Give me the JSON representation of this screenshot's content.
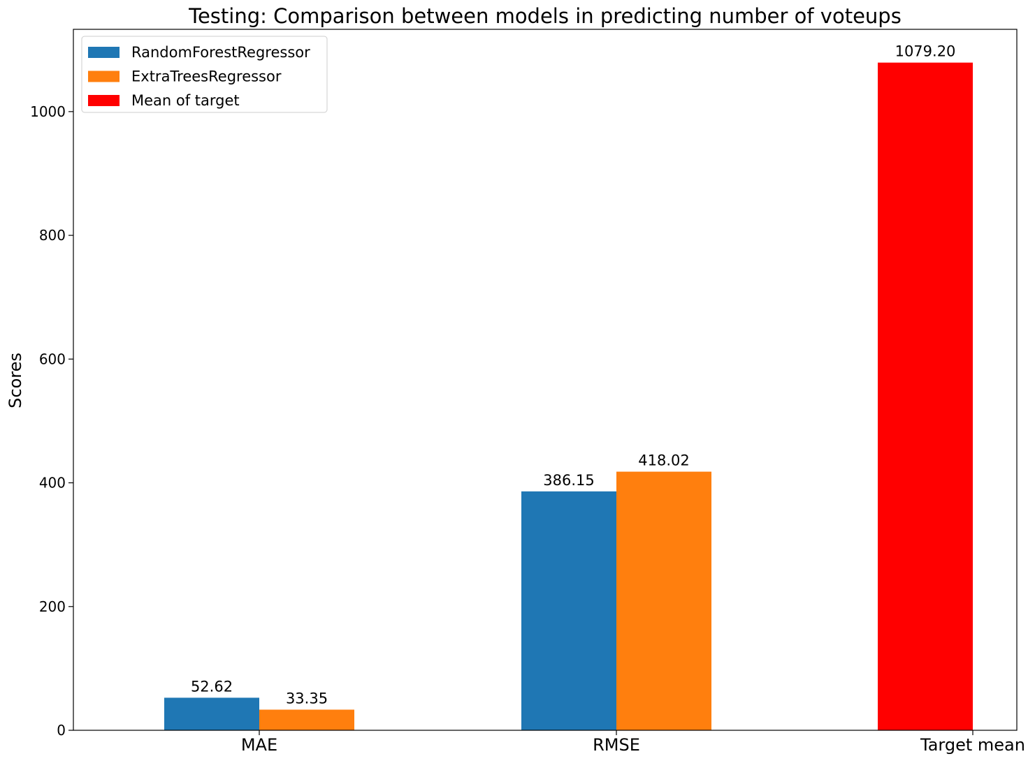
{
  "chart_data": {
    "type": "bar",
    "title": "Testing: Comparison between models in predicting number of voteups",
    "xlabel": "",
    "ylabel": "Scores",
    "categories": [
      "MAE",
      "RMSE",
      "Target mean"
    ],
    "ylim": [
      0,
      1133
    ],
    "yticks": [
      0,
      200,
      400,
      600,
      800,
      1000
    ],
    "grid": false,
    "legend_position": "top-left",
    "series": [
      {
        "name": "RandomForestRegressor",
        "color": "#1f77b4",
        "values": [
          52.62,
          386.15,
          null
        ],
        "labels": [
          "52.62",
          "386.15",
          null
        ]
      },
      {
        "name": "ExtraTreesRegressor",
        "color": "#ff7f0e",
        "values": [
          33.35,
          418.02,
          null
        ],
        "labels": [
          "33.35",
          "418.02",
          null
        ]
      },
      {
        "name": "Mean of target",
        "color": "#ff0000",
        "values": [
          null,
          null,
          1079.2
        ],
        "labels": [
          null,
          null,
          "1079.20"
        ]
      }
    ]
  }
}
